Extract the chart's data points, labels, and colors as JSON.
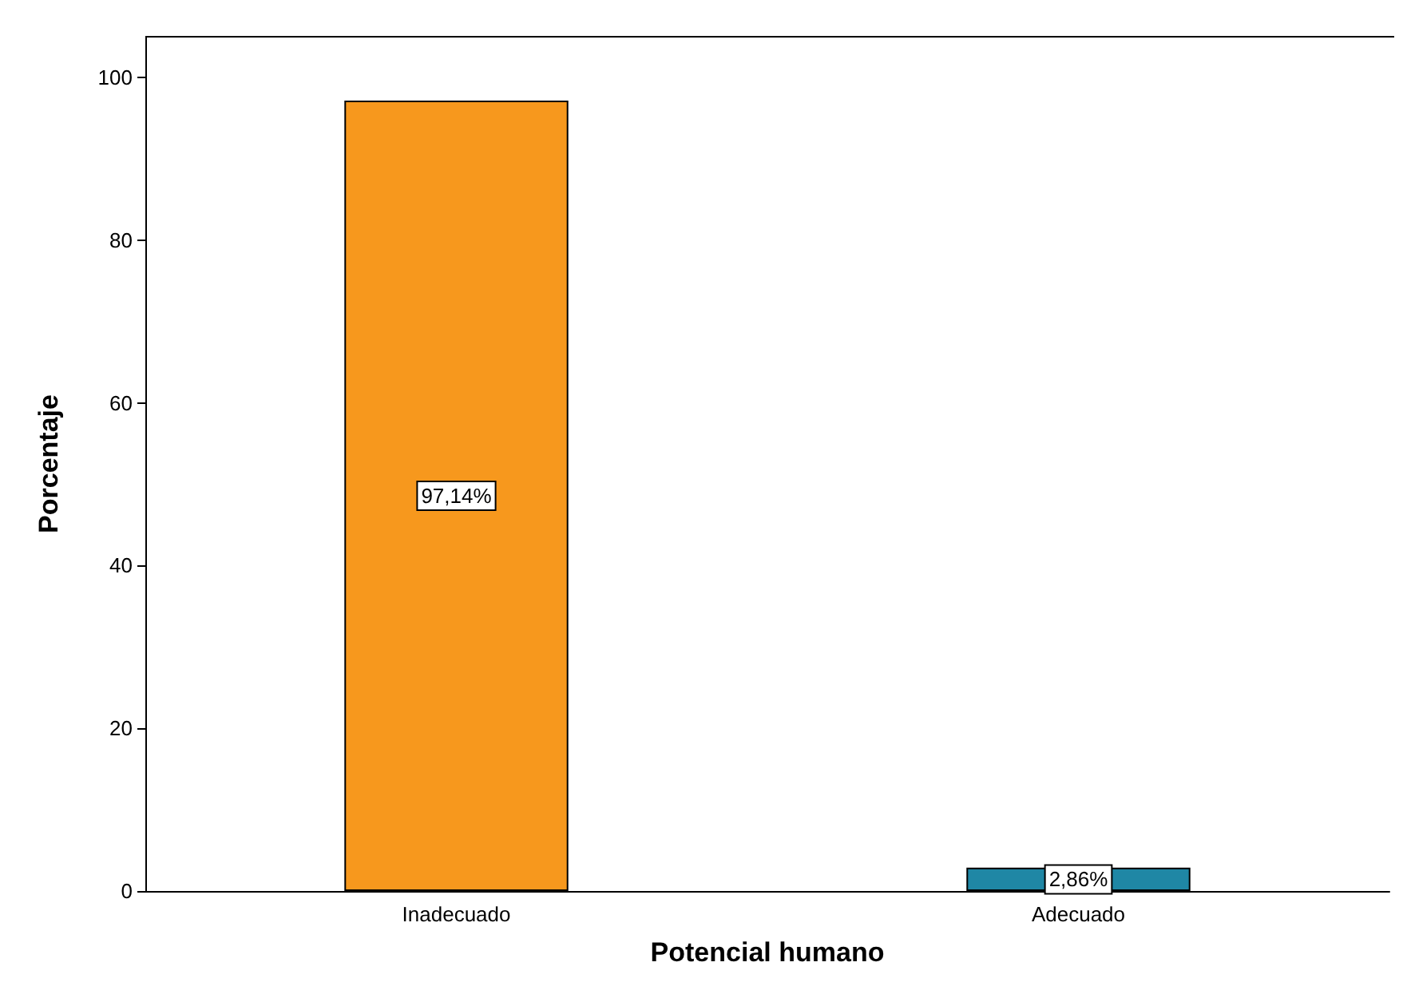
{
  "chart_data": {
    "type": "bar",
    "xlabel": "Potencial humano",
    "ylabel": "Porcentaje",
    "categories": [
      "Inadecuado",
      "Adecuado"
    ],
    "values": [
      97.14,
      2.86
    ],
    "colors": [
      "#f7981d",
      "#1f87a5"
    ],
    "value_labels": [
      "97,14%",
      "2,86%"
    ],
    "ylim": [
      0,
      105
    ],
    "yticks": [
      0,
      20,
      40,
      60,
      80,
      100
    ],
    "grid": false
  }
}
